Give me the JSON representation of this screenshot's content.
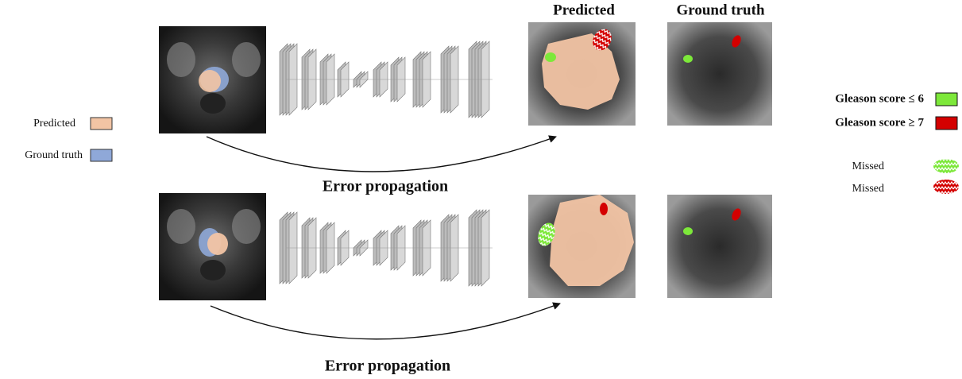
{
  "columns": [
    "Predicted",
    "Ground truth"
  ],
  "left_legend": [
    {
      "label": "Predicted"
    },
    {
      "label": "Ground truth"
    }
  ],
  "rows": [
    {
      "arrow_label": "Error propagation"
    },
    {
      "arrow_label": "Error propagation"
    }
  ],
  "right_legend": [
    {
      "label": "Gleason score ≤ 6"
    },
    {
      "label": "Gleason score ≥ 7"
    },
    {
      "label": "Missed"
    },
    {
      "label": "Missed"
    }
  ]
}
